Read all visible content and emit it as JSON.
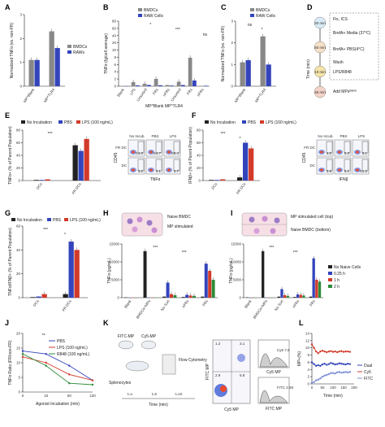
{
  "panel_labels": {
    "A": "A",
    "B": "B",
    "C": "C",
    "D": "D",
    "E": "E",
    "F": "F",
    "G": "G",
    "H": "H",
    "I": "I",
    "J": "J",
    "K": "K",
    "L": "L"
  },
  "chart_data": [
    {
      "id": "A",
      "type": "bar",
      "ylabel": "Normalized TNFα (vs. non-FR)",
      "categories": [
        "MP^Blank",
        "MP^TLR4"
      ],
      "ylim": [
        0,
        3
      ],
      "yticks": [
        "0",
        "1",
        "2",
        "3"
      ],
      "series": [
        {
          "name": "BMDCs",
          "color": "#888888",
          "values": [
            1.1,
            2.3
          ]
        },
        {
          "name": "RAWs",
          "color": "#3344bb",
          "values": [
            1.1,
            1.6
          ]
        }
      ]
    },
    {
      "id": "B",
      "type": "bar",
      "ylabel": "TNFα (fg/cell average)",
      "ylim": [
        0,
        80
      ],
      "yticks": [
        "0",
        "2",
        "4",
        "6",
        "8",
        "10",
        "20",
        "40",
        "60",
        "80"
      ],
      "categories": [
        "Blank",
        "LPS",
        "Unsorted",
        "FRs",
        "nFRs",
        "Unsorted",
        "FRs",
        "nFRs"
      ],
      "group_label": "MP^Blank   MP^TLR4",
      "series": [
        {
          "name": "BMDCs",
          "color": "#888888",
          "values": [
            0.2,
            5,
            3,
            9,
            1.5,
            5.5,
            35,
            0.5
          ]
        },
        {
          "name": "RAW Cells",
          "color": "#3344bb",
          "values": [
            0.1,
            1,
            1.5,
            1.2,
            0.8,
            1.5,
            7,
            0.6
          ]
        }
      ],
      "annotations": [
        "*",
        "***",
        "ns"
      ]
    },
    {
      "id": "C",
      "type": "bar",
      "ylabel": "Normalized TNFα (vs. non-FR)",
      "categories": [
        "MP^Blank",
        "MP^TLR4"
      ],
      "ylim": [
        0,
        3
      ],
      "yticks": [
        "0",
        "1",
        "2",
        "3"
      ],
      "series": [
        {
          "name": "BMDCs",
          "color": "#888888",
          "values": [
            1.1,
            2.3
          ]
        },
        {
          "name": "RAW Cells",
          "color": "#3344bb",
          "values": [
            1.2,
            1.0
          ]
        }
      ],
      "annotations": [
        "ns",
        "*"
      ]
    },
    {
      "id": "E",
      "type": "bar",
      "ylabel": "TNFα+ (% of Parent Population)",
      "categories": [
        "DCs",
        "FR DCs"
      ],
      "ylim": [
        0,
        80
      ],
      "yticks": [
        "0",
        "20",
        "40",
        "60",
        "80"
      ],
      "series": [
        {
          "name": "No Incubation",
          "color": "#222222",
          "values": [
            1,
            56
          ]
        },
        {
          "name": "PBS",
          "color": "#3344bb",
          "values": [
            1,
            47
          ]
        },
        {
          "name": "LPS (100 ng/mL)",
          "color": "#d23a2a",
          "values": [
            2,
            66
          ]
        }
      ],
      "annotations": [
        "***"
      ]
    },
    {
      "id": "F",
      "type": "bar",
      "ylabel": "IFNβ+ (% of Parent Population)",
      "categories": [
        "DCs",
        "FR DCs"
      ],
      "ylim": [
        0,
        80
      ],
      "yticks": [
        "0",
        "20",
        "40",
        "60",
        "80"
      ],
      "series": [
        {
          "name": "No Incubation",
          "color": "#222222",
          "values": [
            1,
            5
          ]
        },
        {
          "name": "PBS",
          "color": "#3344bb",
          "values": [
            1,
            60
          ]
        },
        {
          "name": "LPS (100 ng/mL)",
          "color": "#d23a2a",
          "values": [
            2,
            51
          ]
        }
      ],
      "annotations": [
        "***",
        "*"
      ]
    },
    {
      "id": "G",
      "type": "bar",
      "ylabel": "TNFα/IFNβ+ (% of Parent Population)",
      "categories": [
        "DCs",
        "FR DCs"
      ],
      "ylim": [
        0,
        60
      ],
      "yticks": [
        "0",
        "20",
        "40",
        "60"
      ],
      "series": [
        {
          "name": "No Incubation",
          "color": "#222222",
          "values": [
            0.5,
            3
          ]
        },
        {
          "name": "PBS",
          "color": "#3344bb",
          "values": [
            1,
            47
          ]
        },
        {
          "name": "LPS (100 ng/mL)",
          "color": "#d23a2a",
          "values": [
            3,
            40
          ]
        }
      ],
      "annotations": [
        "***",
        "*"
      ]
    },
    {
      "id": "H",
      "type": "bar",
      "ylabel": "TNFα (pg/mL)",
      "categories": [
        "Blank",
        "BMDCs+MPs",
        "No Sort",
        "nFRs",
        "FRs"
      ],
      "ylim": [
        0,
        15000
      ],
      "yticks": [
        "0",
        "5000",
        "10000",
        "15000"
      ],
      "series": [
        {
          "name": "No Naive Cells",
          "color": "#222222",
          "values": [
            100,
            13000,
            300,
            200,
            300
          ]
        },
        {
          "name": "0.25 h",
          "color": "#3344bb",
          "values": [
            0,
            0,
            4200,
            800,
            9500
          ]
        },
        {
          "name": "1 h",
          "color": "#d23a2a",
          "values": [
            0,
            0,
            1000,
            600,
            7500
          ]
        },
        {
          "name": "2 h",
          "color": "#2e8b3a",
          "values": [
            0,
            0,
            700,
            500,
            5000
          ]
        }
      ],
      "annotations": [
        "***",
        "***"
      ]
    },
    {
      "id": "I",
      "type": "bar",
      "ylabel": "TNFα (pg/mL)",
      "categories": [
        "Blank",
        "BMDCs+MPs",
        "No Sort",
        "nFRs",
        "FRs"
      ],
      "ylim": [
        0,
        15000
      ],
      "yticks": [
        "0",
        "5000",
        "10000",
        "15000"
      ],
      "series": [
        {
          "name": "No Naive Cells",
          "color": "#222222",
          "values": [
            100,
            13000,
            300,
            200,
            300
          ]
        },
        {
          "name": "0.25 h",
          "color": "#3344bb",
          "values": [
            0,
            0,
            2400,
            900,
            11000
          ]
        },
        {
          "name": "1 h",
          "color": "#d23a2a",
          "values": [
            0,
            0,
            700,
            800,
            5000
          ]
        },
        {
          "name": "2 h",
          "color": "#2e8b3a",
          "values": [
            0,
            0,
            500,
            600,
            4500
          ]
        }
      ],
      "annotations": [
        "***",
        "***"
      ]
    },
    {
      "id": "J",
      "type": "line",
      "ylabel": "TNFα Ratio (FR/non-FR)",
      "xlabel": "Agonist Incubation (min)",
      "x": [
        0,
        15,
        60,
        120
      ],
      "ylim": [
        0,
        20
      ],
      "yticks": [
        "0",
        "5",
        "10",
        "15",
        "20"
      ],
      "xticks": [
        "0",
        "15",
        "60",
        "120"
      ],
      "series": [
        {
          "name": "PBS",
          "color": "#3344bb",
          "values": [
            14,
            13,
            9,
            4
          ]
        },
        {
          "name": "LPS (100 ng/mL)",
          "color": "#d23a2a",
          "values": [
            12,
            10,
            6,
            4
          ]
        },
        {
          "name": "R848 (100 ng/mL)",
          "color": "#2e8b3a",
          "values": [
            13,
            9,
            3,
            2.5
          ]
        }
      ],
      "annotations": [
        "**"
      ]
    },
    {
      "id": "L",
      "type": "line",
      "ylabel": "MP+(%)",
      "xlabel": "Time (min)",
      "x": [
        0,
        10,
        20,
        30,
        40,
        50,
        60,
        70,
        80,
        90,
        100,
        110,
        120,
        130,
        140,
        150,
        160,
        170,
        180
      ],
      "ylim": [
        0,
        14
      ],
      "yticks": [
        "0",
        "2",
        "4",
        "6",
        "8",
        "10",
        "12",
        "14"
      ],
      "xticks": [
        "0",
        "50",
        "100",
        "150",
        "200"
      ],
      "series": [
        {
          "name": "Dual",
          "color": "#3344bb",
          "values": [
            6,
            5.5,
            5,
            5.2,
            5,
            5.4,
            5.6,
            5.3,
            5.5,
            5.8,
            5.6,
            5.4,
            5.5,
            5.7,
            5.6,
            5.5,
            5.4,
            5.6,
            5.5
          ]
        },
        {
          "name": "Cy5",
          "color": "#d23a2a",
          "values": [
            11,
            10,
            9,
            8.5,
            9,
            9.2,
            9,
            8.8,
            9,
            9.1,
            8.9,
            9,
            8.8,
            9,
            9.1,
            8.9,
            9,
            9,
            8.9
          ]
        },
        {
          "name": "FITC",
          "color": "#7b8ed6",
          "values": [
            0.3,
            0.5,
            1,
            1.2,
            1.5,
            2,
            2.3,
            2.5,
            2.7,
            3,
            3,
            2.9,
            3.2,
            3.3,
            3.1,
            3.2,
            3.3,
            3.2,
            3.3
          ]
        }
      ]
    }
  ],
  "d_panel": {
    "times": [
      "30 min",
      "60 min",
      "10 min",
      "45 min"
    ],
    "axis": "Time (min)",
    "fix": "Fix, ICS",
    "steps": [
      "BrefA+ Media (37°C)",
      "BrefA+ PBS(4°C)",
      "Wash",
      "LPS/R848"
    ],
    "add": "Add MPs",
    "add_sup": "Blank"
  },
  "h_panel": {
    "top": "Naive BMDC",
    "bottom": "MP stimulated"
  },
  "i_panel": {
    "top": "MP stimulated cell (top)",
    "bottom": "Naive BMDC (bottom)"
  },
  "e_flow": {
    "cols": [
      "No Incub.",
      "PBS",
      "LPS"
    ],
    "rows": [
      "FR DC",
      "DC"
    ],
    "values": [
      [
        "54.0",
        "64.7",
        "65.4"
      ],
      [
        "3.2",
        "3.1",
        "2.7"
      ]
    ],
    "xaxis": "TNFα",
    "yaxis": "CD45"
  },
  "f_flow": {
    "cols": [
      "No Incub.",
      "PBS",
      "LPS"
    ],
    "rows": [
      "FR DC",
      "DC"
    ],
    "values": [
      [
        "4.0",
        "5.3",
        "6.1"
      ],
      [
        "3.9",
        "5.1",
        "51.2"
      ]
    ],
    "xaxis": "IFNβ",
    "yaxis": "CD45"
  },
  "k_panel": {
    "fitc": "FITC-MP",
    "cy5": "Cy5-MP",
    "splenocytes": "Splenocytes",
    "flow": "Flow Cytometry",
    "times": [
      "t=x",
      "t=0",
      "t=10"
    ],
    "time_label": "Time (min)",
    "q": [
      "1.2",
      "3.1",
      "2.9",
      "5.8"
    ],
    "xaxis": "Cy5 MP",
    "yaxis": "FITC MP",
    "hist1": "Cy5 MP",
    "hist1_val": "Cy5 7.6",
    "hist2": "FITC MP",
    "hist2_val": "FITC 2.59"
  },
  "legends": {
    "bmdc": "BMDCs",
    "raw": "RAWs",
    "raw_cells": "RAW Cells",
    "no_inc": "No Incubation",
    "pbs": "PBS",
    "lps": "LPS (100 ng/mL)",
    "r848": "R848 (100 ng/mL)",
    "no_naive": "No Naive Cells",
    "h025": "0.25 h",
    "h1": "1 h",
    "h2": "2 h",
    "dual": "Dual",
    "cy5": "Cy5",
    "fitc": "FITC"
  }
}
